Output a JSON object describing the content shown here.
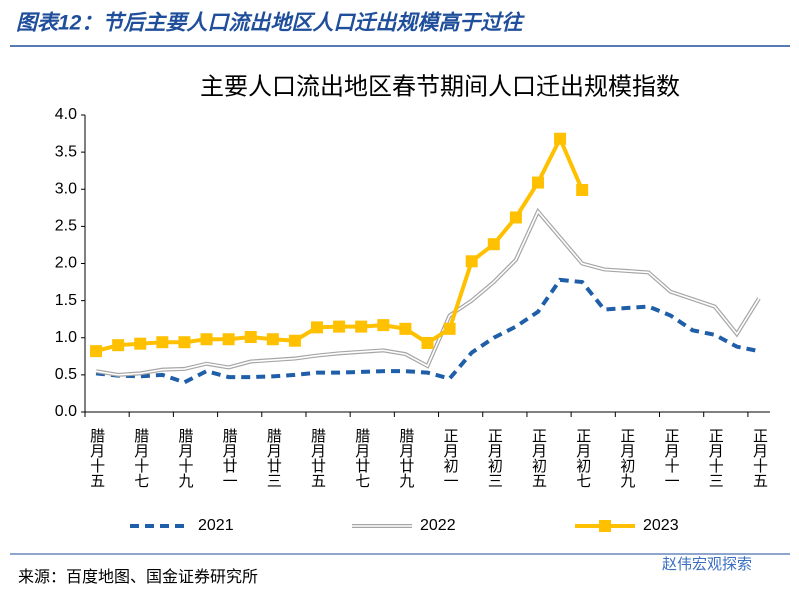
{
  "figure_title": "图表12：节后主要人口流出地区人口迁出规模高于过往",
  "source": "来源：百度地图、国金证券研究所",
  "watermark": "赵伟宏观探索",
  "chart_data": {
    "type": "line",
    "title": "主要人口流出地区春节期间人口迁出规模指数",
    "categories": [
      "腊月十五",
      null,
      "腊月十七",
      null,
      "腊月十九",
      null,
      "腊月廿一",
      null,
      "腊月廿三",
      null,
      "腊月廿五",
      null,
      "腊月廿七",
      null,
      "腊月廿九",
      null,
      "正月初一",
      null,
      "正月初三",
      null,
      "正月初五",
      null,
      "正月初七",
      null,
      "正月初九",
      null,
      "正月十一",
      null,
      "正月十三",
      null,
      "正月十五"
    ],
    "ylim": [
      0,
      4
    ],
    "yticks": [
      {
        "value": 0,
        "label": "0.0"
      },
      0.5,
      {
        "value": 1,
        "label": "1.0"
      },
      1.5,
      {
        "value": 2,
        "label": "2.0"
      },
      2.5,
      {
        "value": 3,
        "label": "3.0"
      },
      3.5,
      {
        "value": 4,
        "label": "4.0"
      }
    ],
    "series": [
      {
        "name": "2021",
        "color": "#1f5ea8",
        "style": "dashed",
        "values": [
          0.52,
          0.49,
          0.48,
          0.5,
          0.4,
          0.55,
          0.47,
          0.47,
          0.48,
          0.5,
          0.53,
          0.53,
          0.54,
          0.55,
          0.55,
          0.53,
          0.45,
          0.8,
          1.0,
          1.15,
          1.35,
          1.78,
          1.75,
          1.38,
          1.4,
          1.42,
          1.3,
          1.1,
          1.04,
          0.88,
          0.82
        ]
      },
      {
        "name": "2022",
        "color": "#a6a6a6",
        "style": "double",
        "values": [
          0.55,
          0.5,
          0.52,
          0.57,
          0.58,
          0.65,
          0.6,
          0.68,
          0.7,
          0.72,
          0.76,
          0.79,
          0.81,
          0.83,
          0.78,
          0.62,
          1.3,
          1.5,
          1.75,
          2.05,
          2.7,
          2.35,
          2.0,
          1.92,
          1.9,
          1.88,
          1.62,
          1.52,
          1.42,
          1.05,
          1.53
        ]
      },
      {
        "name": "2023",
        "color": "#ffc000",
        "style": "square",
        "values": [
          0.82,
          0.9,
          0.92,
          0.94,
          0.94,
          0.98,
          0.98,
          1.01,
          0.98,
          0.96,
          1.14,
          1.15,
          1.15,
          1.17,
          1.12,
          0.93,
          1.12,
          2.03,
          2.26,
          2.62,
          3.09,
          3.68,
          2.99,
          null,
          null,
          null,
          null,
          null,
          null,
          null,
          null
        ]
      }
    ]
  }
}
